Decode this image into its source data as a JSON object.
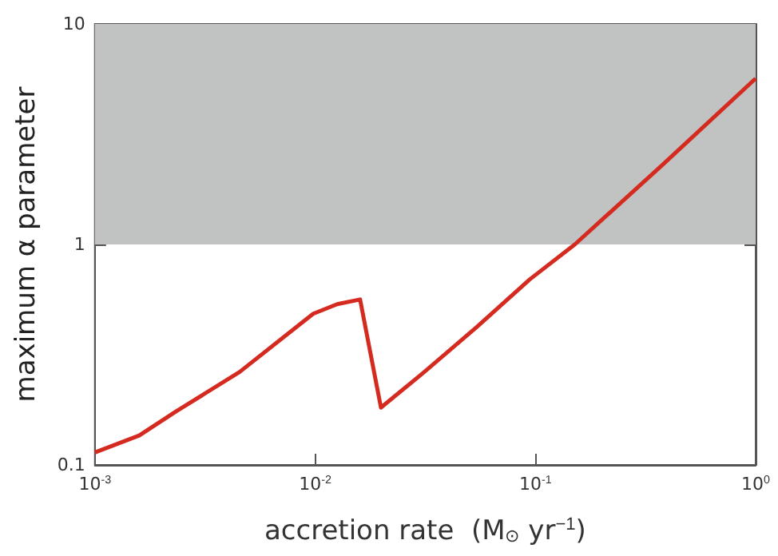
{
  "chart_data": {
    "type": "line",
    "xlabel": "accretion rate  (M$_{⊙}$ yr$^{−1}$)",
    "ylabel": "maximum α parameter",
    "log": "xy",
    "xlim": [
      0.001,
      1
    ],
    "ylim": [
      0.1,
      10
    ],
    "xticks": [
      {
        "value": 0.001,
        "label": "10$^{-3}$"
      },
      {
        "value": 0.01,
        "label": "10$^{-2}$"
      },
      {
        "value": 0.1,
        "label": "10$^{-1}$"
      },
      {
        "value": 1,
        "label": "10$^{0}$"
      }
    ],
    "yticks": [
      0.1,
      1,
      10
    ],
    "x": [
      0.001,
      0.00159,
      0.00234,
      0.00454,
      0.0098,
      0.0126,
      0.016,
      0.0199,
      0.0313,
      0.0543,
      0.0944,
      0.151,
      0.375,
      1
    ],
    "series": [
      {
        "color": "#d42a20",
        "values": [
          0.114,
          0.136,
          0.175,
          0.264,
          0.485,
          0.536,
          0.563,
          0.182,
          0.264,
          0.423,
          0.695,
          1.0,
          2.28,
          5.66
        ]
      }
    ],
    "bands": [
      {
        "axis": "y",
        "from": 1,
        "to": 10,
        "color": "#c0c3c1"
      }
    ],
    "grid": false,
    "marker": "none",
    "line_style": "solid"
  }
}
